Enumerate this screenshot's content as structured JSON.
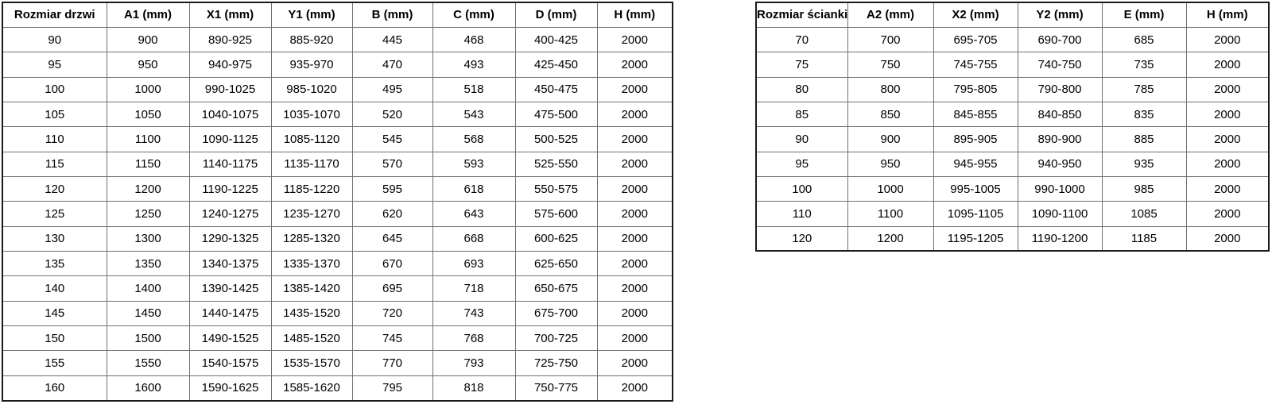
{
  "tables": [
    {
      "name": "door-size-table",
      "headers": [
        "Rozmiar drzwi",
        "A1 (mm)",
        "X1 (mm)",
        "Y1 (mm)",
        "B (mm)",
        "C (mm)",
        "D (mm)",
        "H (mm)"
      ],
      "rows": [
        [
          "90",
          "900",
          "890-925",
          "885-920",
          "445",
          "468",
          "400-425",
          "2000"
        ],
        [
          "95",
          "950",
          "940-975",
          "935-970",
          "470",
          "493",
          "425-450",
          "2000"
        ],
        [
          "100",
          "1000",
          "990-1025",
          "985-1020",
          "495",
          "518",
          "450-475",
          "2000"
        ],
        [
          "105",
          "1050",
          "1040-1075",
          "1035-1070",
          "520",
          "543",
          "475-500",
          "2000"
        ],
        [
          "110",
          "1100",
          "1090-1125",
          "1085-1120",
          "545",
          "568",
          "500-525",
          "2000"
        ],
        [
          "115",
          "1150",
          "1140-1175",
          "1135-1170",
          "570",
          "593",
          "525-550",
          "2000"
        ],
        [
          "120",
          "1200",
          "1190-1225",
          "1185-1220",
          "595",
          "618",
          "550-575",
          "2000"
        ],
        [
          "125",
          "1250",
          "1240-1275",
          "1235-1270",
          "620",
          "643",
          "575-600",
          "2000"
        ],
        [
          "130",
          "1300",
          "1290-1325",
          "1285-1320",
          "645",
          "668",
          "600-625",
          "2000"
        ],
        [
          "135",
          "1350",
          "1340-1375",
          "1335-1370",
          "670",
          "693",
          "625-650",
          "2000"
        ],
        [
          "140",
          "1400",
          "1390-1425",
          "1385-1420",
          "695",
          "718",
          "650-675",
          "2000"
        ],
        [
          "145",
          "1450",
          "1440-1475",
          "1435-1520",
          "720",
          "743",
          "675-700",
          "2000"
        ],
        [
          "150",
          "1500",
          "1490-1525",
          "1485-1520",
          "745",
          "768",
          "700-725",
          "2000"
        ],
        [
          "155",
          "1550",
          "1540-1575",
          "1535-1570",
          "770",
          "793",
          "725-750",
          "2000"
        ],
        [
          "160",
          "1600",
          "1590-1625",
          "1585-1620",
          "795",
          "818",
          "750-775",
          "2000"
        ]
      ]
    },
    {
      "name": "wall-size-table",
      "headers": [
        "Rozmiar ścianki",
        "A2 (mm)",
        "X2 (mm)",
        "Y2 (mm)",
        "E (mm)",
        "H (mm)"
      ],
      "rows": [
        [
          "70",
          "700",
          "695-705",
          "690-700",
          "685",
          "2000"
        ],
        [
          "75",
          "750",
          "745-755",
          "740-750",
          "735",
          "2000"
        ],
        [
          "80",
          "800",
          "795-805",
          "790-800",
          "785",
          "2000"
        ],
        [
          "85",
          "850",
          "845-855",
          "840-850",
          "835",
          "2000"
        ],
        [
          "90",
          "900",
          "895-905",
          "890-900",
          "885",
          "2000"
        ],
        [
          "95",
          "950",
          "945-955",
          "940-950",
          "935",
          "2000"
        ],
        [
          "100",
          "1000",
          "995-1005",
          "990-1000",
          "985",
          "2000"
        ],
        [
          "110",
          "1100",
          "1095-1105",
          "1090-1100",
          "1085",
          "2000"
        ],
        [
          "120",
          "1200",
          "1195-1205",
          "1190-1200",
          "1185",
          "2000"
        ]
      ]
    }
  ],
  "colors": {
    "outer_border": "#1a1a1a",
    "inner_border": "#707070",
    "text": "#000000",
    "background": "#ffffff"
  }
}
